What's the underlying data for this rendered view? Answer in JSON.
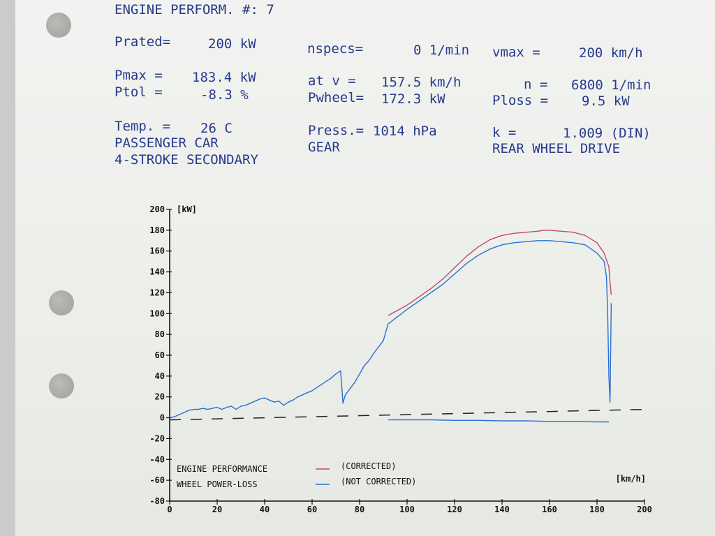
{
  "header": {
    "title": "ENGINE PERFORM. #: 7",
    "prated_label": "Prated=",
    "prated_value": "200 kW",
    "nspecs_label": "nspecs=",
    "nspecs_value": "0 1/min",
    "vmax_label": "vmax =",
    "vmax_value": "200 km/h",
    "pmax_label": "Pmax =",
    "pmax_value": "183.4 kW",
    "at_v_label": "at v =",
    "at_v_value": "157.5 km/h",
    "n_label": "n =",
    "n_value": "6800 1/min",
    "ptol_label": "Ptol =",
    "ptol_value": "-8.3 %",
    "pwheel_label": "Pwheel=",
    "pwheel_value": "172.3 kW",
    "ploss_label": "Ploss =",
    "ploss_value": "9.5 kW",
    "temp_label": "Temp. =",
    "temp_value": "26 C",
    "press_label": "Press.=",
    "press_value": "1014 hPa",
    "k_label": "k =",
    "k_value": "1.009 (DIN)",
    "vehicle": "PASSENGER CAR",
    "gear": "GEAR",
    "drive": "REAR WHEEL DRIVE",
    "engine": "4-STROKE SECONDARY"
  },
  "chart_data": {
    "type": "line",
    "xlabel": "[km/h]",
    "ylabel": "[kW]",
    "xlim": [
      0,
      200
    ],
    "ylim": [
      -80,
      200
    ],
    "x_ticks": [
      "0",
      "20",
      "40",
      "60",
      "80",
      "100",
      "120",
      "140",
      "160",
      "180",
      "200"
    ],
    "y_ticks": [
      "200",
      "180",
      "160",
      "140",
      "120",
      "100",
      "80",
      "60",
      "40",
      "20",
      "0",
      "-20",
      "-40",
      "-60",
      "-80"
    ],
    "legend": [
      {
        "label": "ENGINE PERFORMANCE",
        "line": "(CORRECTED)",
        "color": "#c2476e"
      },
      {
        "label": "WHEEL POWER-LOSS",
        "line": "(NOT CORRECTED)",
        "color": "#2a6fd0"
      }
    ],
    "series": [
      {
        "key": "corrected",
        "color": "#c2476e",
        "x": [
          92,
          96,
          100,
          105,
          110,
          115,
          120,
          125,
          130,
          135,
          140,
          145,
          150,
          155,
          157.5,
          160,
          165,
          170,
          175,
          180,
          183,
          185,
          185.5,
          186
        ],
        "y": [
          98,
          103,
          108,
          116,
          124,
          133,
          144,
          155,
          164,
          171,
          175,
          177,
          178,
          179,
          180,
          180,
          179,
          178,
          175,
          168,
          158,
          145,
          130,
          118
        ]
      },
      {
        "key": "not_corrected",
        "color": "#2a6fd0",
        "x": [
          0,
          2,
          4,
          6,
          8,
          10,
          12,
          14,
          16,
          18,
          20,
          22,
          24,
          26,
          28,
          30,
          32,
          34,
          36,
          38,
          40,
          42,
          44,
          46,
          48,
          50,
          52,
          54,
          56,
          58,
          60,
          62,
          64,
          66,
          68,
          70,
          72,
          73,
          74,
          76,
          78,
          80,
          82,
          84,
          86,
          88,
          90,
          92,
          96,
          100,
          105,
          110,
          115,
          120,
          125,
          130,
          135,
          140,
          145,
          150,
          155,
          160,
          165,
          170,
          175,
          180,
          183,
          184,
          184.5,
          185,
          185.5,
          186
        ],
        "y": [
          0,
          1,
          3,
          5,
          7,
          8,
          8,
          9,
          8,
          9,
          10,
          8,
          10,
          11,
          8,
          11,
          12,
          14,
          16,
          18,
          19,
          17,
          15,
          16,
          12,
          15,
          17,
          20,
          22,
          24,
          26,
          29,
          32,
          35,
          38,
          42,
          45,
          14,
          22,
          28,
          34,
          42,
          50,
          55,
          62,
          68,
          74,
          90,
          97,
          104,
          112,
          120,
          128,
          138,
          148,
          156,
          162,
          166,
          168,
          169,
          170,
          170,
          169,
          168,
          166,
          158,
          150,
          135,
          100,
          40,
          15,
          110
        ]
      },
      {
        "key": "wheel_power_loss",
        "color": "#2a6fd0",
        "x": [
          92,
          100,
          110,
          120,
          130,
          140,
          150,
          160,
          170,
          180,
          185
        ],
        "y": [
          -2,
          -2,
          -2,
          -2.5,
          -2.5,
          -3,
          -3,
          -3.5,
          -3.5,
          -4,
          -4
        ]
      },
      {
        "key": "reference_dashed",
        "color": "#222222",
        "x": [
          0,
          200
        ],
        "y": [
          -2,
          8
        ]
      }
    ]
  }
}
